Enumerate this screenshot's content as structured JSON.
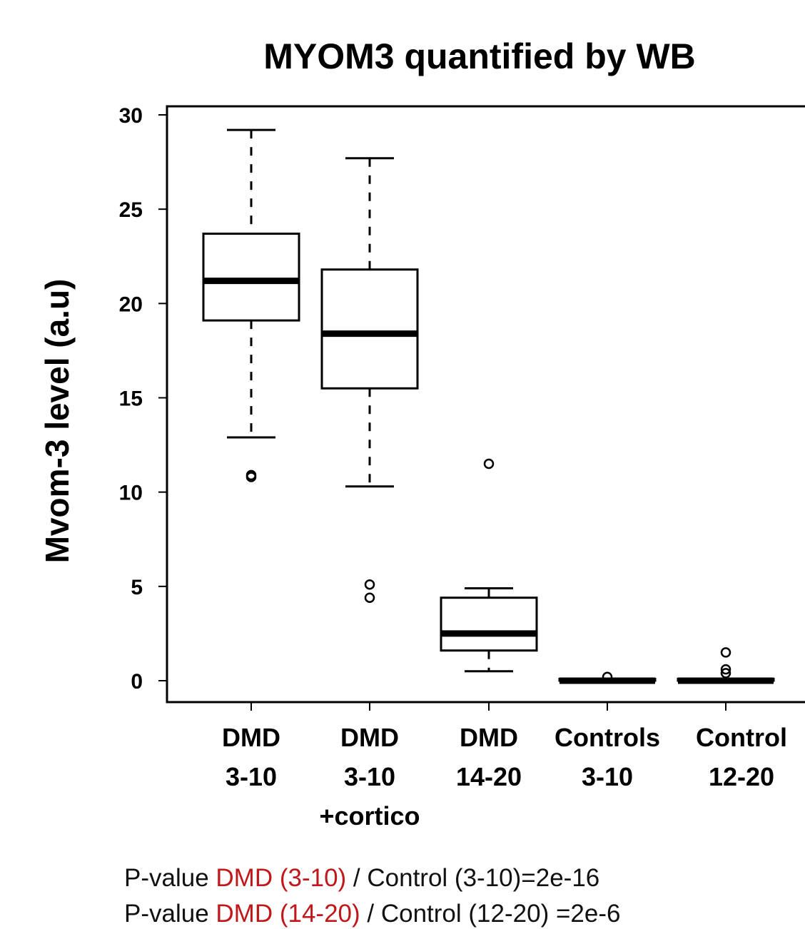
{
  "chart_data": {
    "type": "boxplot",
    "title": "MYOM3 quantified by WB",
    "xlabel": "",
    "ylabel": "Mvom-3 level (a.u)",
    "ylim": [
      0,
      30
    ],
    "yticks": [
      0,
      5,
      10,
      15,
      20,
      25,
      30
    ],
    "grid": false,
    "categories": [
      [
        "DMD",
        "3-10",
        ""
      ],
      [
        "DMD",
        "3-10",
        "+cortico"
      ],
      [
        "DMD",
        "14-20",
        ""
      ],
      [
        "Controls",
        "3-10",
        ""
      ],
      [
        "Control",
        "12-20",
        ""
      ]
    ],
    "boxes": [
      {
        "whisker_low": 12.9,
        "q1": 19.1,
        "median": 21.2,
        "q3": 23.7,
        "whisker_high": 29.2,
        "outliers": [
          10.8,
          10.9
        ]
      },
      {
        "whisker_low": 10.3,
        "q1": 15.5,
        "median": 18.4,
        "q3": 21.8,
        "whisker_high": 27.7,
        "outliers": [
          4.4,
          5.1
        ]
      },
      {
        "whisker_low": 0.5,
        "q1": 1.6,
        "median": 2.5,
        "q3": 4.4,
        "whisker_high": 4.9,
        "outliers": [
          11.5
        ]
      },
      {
        "whisker_low": 0.0,
        "q1": 0.0,
        "median": 0.0,
        "q3": 0.1,
        "whisker_high": 0.1,
        "outliers": [
          0.2
        ]
      },
      {
        "whisker_low": 0.0,
        "q1": 0.0,
        "median": 0.0,
        "q3": 0.1,
        "whisker_high": 0.1,
        "outliers": [
          0.4,
          0.6,
          1.5
        ]
      }
    ]
  },
  "notes": [
    {
      "prefix": "P-value ",
      "highlight": "DMD (3-10)",
      "suffix": " / Control (3-10)=2e-16"
    },
    {
      "prefix": "P-value ",
      "highlight": "DMD (14-20)",
      "suffix": " / Control (12-20) =2e-6"
    }
  ],
  "colors": {
    "highlight": "#c0171b",
    "ink": "#000000"
  }
}
